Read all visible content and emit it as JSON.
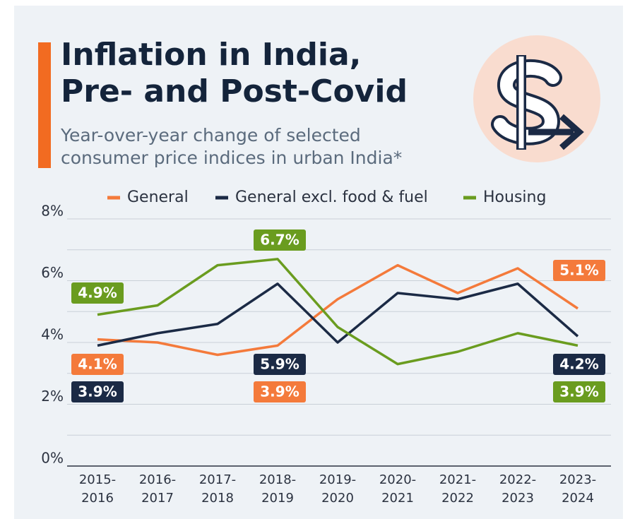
{
  "chart_data": {
    "type": "line",
    "title": "Inflation in India,\nPre- and Post-Covid",
    "subtitle": "Year-over-year change of selected\nconsumer price indices in urban India*",
    "categories": [
      "2015-2016",
      "2016-2017",
      "2017-2018",
      "2018-2019",
      "2019-2020",
      "2020-2021",
      "2021-2022",
      "2022-2023",
      "2023-2024"
    ],
    "series": [
      {
        "name": "General",
        "color": "#f47a3b",
        "values": [
          4.1,
          4.0,
          3.6,
          3.9,
          5.4,
          6.5,
          5.6,
          6.4,
          5.1
        ],
        "value_labels": [
          "4.1%",
          null,
          null,
          "3.9%",
          null,
          null,
          null,
          null,
          "5.1%"
        ]
      },
      {
        "name": "General excl. food & fuel",
        "color": "#1b2a45",
        "values": [
          3.9,
          4.3,
          4.6,
          5.9,
          4.0,
          5.6,
          5.4,
          5.9,
          4.2
        ],
        "value_labels": [
          "3.9%",
          null,
          null,
          "5.9%",
          null,
          null,
          null,
          null,
          "4.2%"
        ]
      },
      {
        "name": "Housing",
        "color": "#6a9c1f",
        "values": [
          4.9,
          5.2,
          6.5,
          6.7,
          4.5,
          3.3,
          3.7,
          4.3,
          3.9
        ],
        "value_labels": [
          "4.9%",
          null,
          null,
          "6.7%",
          null,
          null,
          null,
          null,
          "3.9%"
        ]
      }
    ],
    "ylim": [
      0,
      8
    ],
    "yticks": [
      {
        "value": 0,
        "label": "0%"
      },
      {
        "value": 2,
        "label": "2%"
      },
      {
        "value": 4,
        "label": "4%"
      },
      {
        "value": 6,
        "label": "6%"
      },
      {
        "value": 8,
        "label": "8%"
      }
    ],
    "y_minor_ticks": [
      1,
      3,
      5,
      7
    ],
    "grid": true,
    "legend": "top"
  }
}
